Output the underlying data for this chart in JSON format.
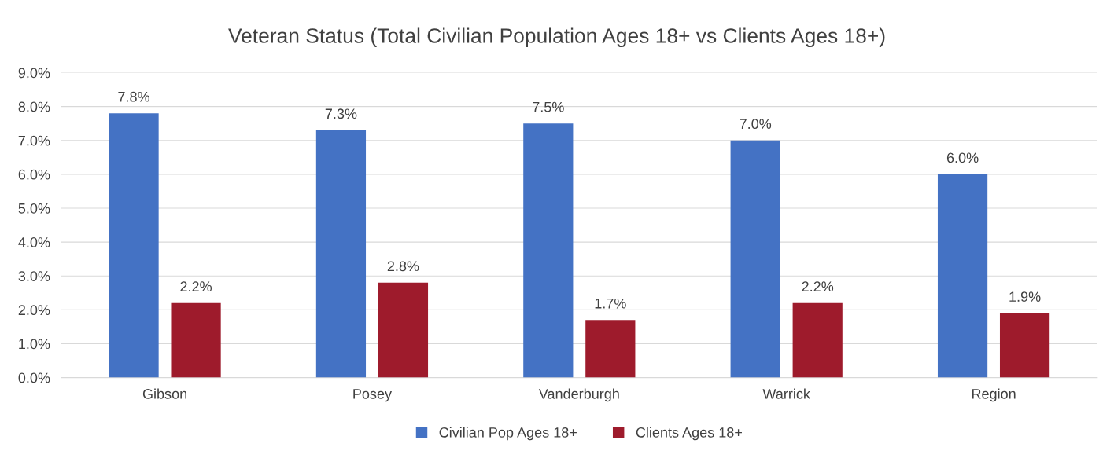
{
  "chart_data": {
    "type": "bar",
    "title": "Veteran Status (Total Civilian Population Ages 18+ vs Clients Ages 18+)",
    "categories": [
      "Gibson",
      "Posey",
      "Vanderburgh",
      "Warrick",
      "Region"
    ],
    "series": [
      {
        "name": "Civilian Pop Ages 18+",
        "color": "#4472c4",
        "values": [
          7.8,
          7.3,
          7.5,
          7.0,
          6.0
        ],
        "value_labels": [
          "7.8%",
          "7.3%",
          "7.5%",
          "7.0%",
          "6.0%"
        ]
      },
      {
        "name": "Clients Ages 18+",
        "color": "#9e1b2c",
        "values": [
          2.2,
          2.8,
          1.7,
          2.2,
          1.9
        ],
        "value_labels": [
          "2.2%",
          "2.8%",
          "1.7%",
          "2.2%",
          "1.9%"
        ]
      }
    ],
    "ylim": [
      0,
      9
    ],
    "yticks": [
      {
        "value": 0,
        "label": "0.0%"
      },
      {
        "value": 1,
        "label": "1.0%"
      },
      {
        "value": 2,
        "label": "2.0%"
      },
      {
        "value": 3,
        "label": "3.0%"
      },
      {
        "value": 4,
        "label": "4.0%"
      },
      {
        "value": 5,
        "label": "5.0%"
      },
      {
        "value": 6,
        "label": "6.0%"
      },
      {
        "value": 7,
        "label": "7.0%"
      },
      {
        "value": 8,
        "label": "8.0%"
      },
      {
        "value": 9,
        "label": "9.0%"
      }
    ],
    "grid": "y",
    "legend": "bottom"
  }
}
